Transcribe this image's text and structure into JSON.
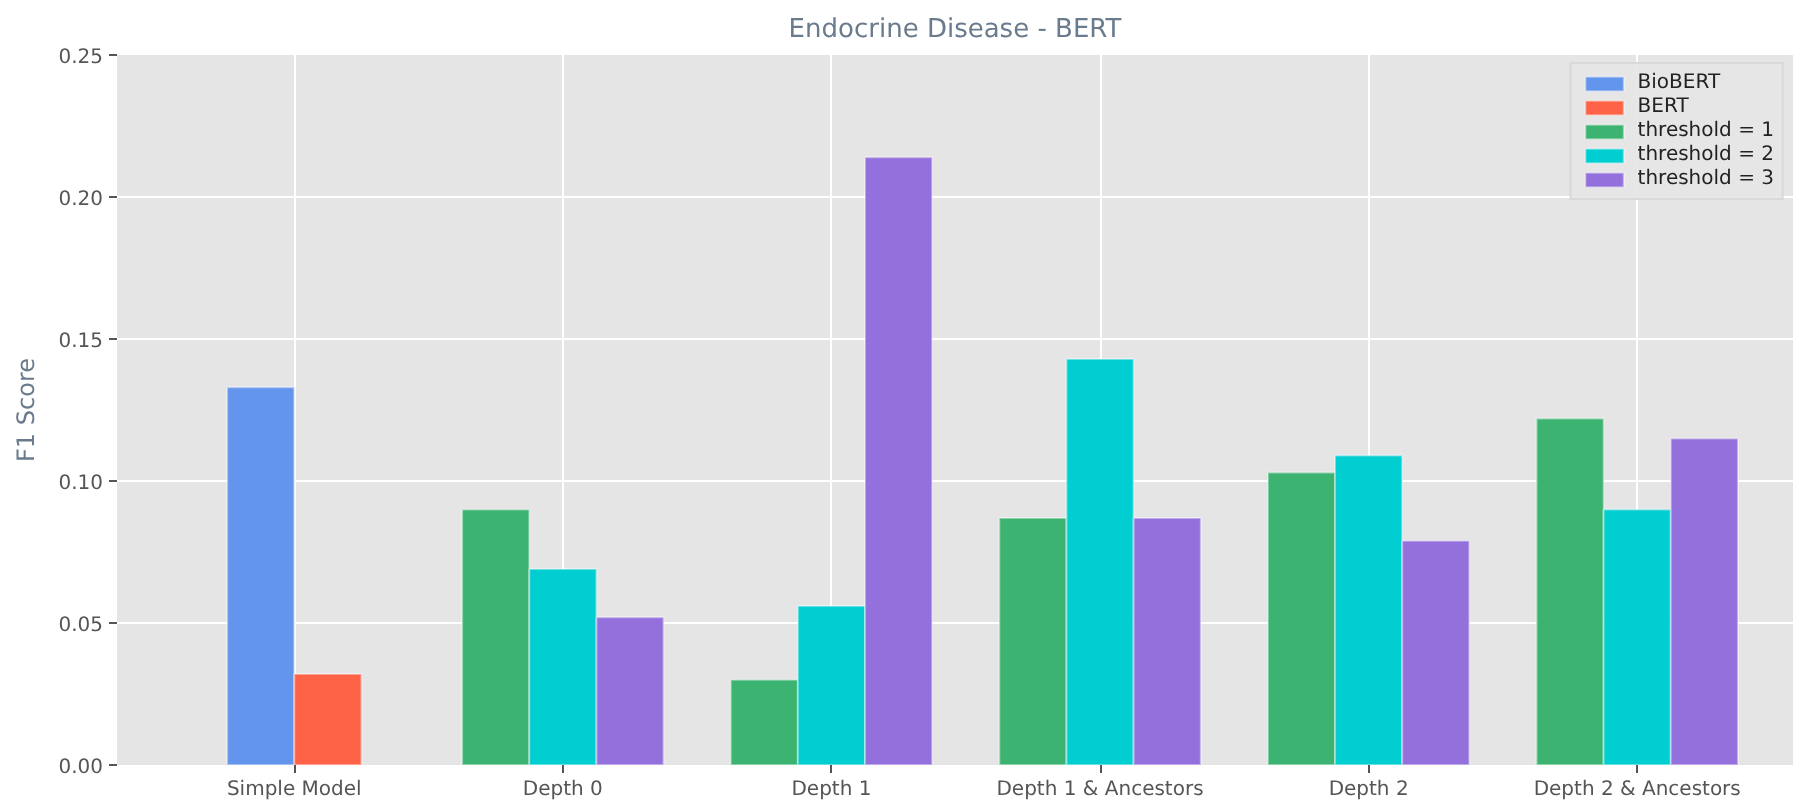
{
  "chart_data": {
    "type": "bar",
    "title": "Endocrine Disease - BERT",
    "ylabel": "F1 Score",
    "categories": [
      "Simple Model",
      "Depth 0",
      "Depth 1",
      "Depth 1 & Ancestors",
      "Depth 2",
      "Depth 2 & Ancestors"
    ],
    "series": [
      {
        "name": "BioBERT",
        "color": "#6495ed",
        "values": [
          0.133,
          null,
          null,
          null,
          null,
          null
        ]
      },
      {
        "name": "BERT",
        "color": "#ff6347",
        "values": [
          0.032,
          null,
          null,
          null,
          null,
          null
        ]
      },
      {
        "name": "threshold = 1",
        "color": "#3cb371",
        "values": [
          null,
          0.09,
          0.03,
          0.087,
          0.103,
          0.122
        ]
      },
      {
        "name": "threshold = 2",
        "color": "#00ced1",
        "values": [
          null,
          0.069,
          0.056,
          0.143,
          0.109,
          0.09
        ]
      },
      {
        "name": "threshold = 3",
        "color": "#9370db",
        "values": [
          null,
          0.052,
          0.214,
          0.087,
          0.079,
          0.115
        ]
      }
    ],
    "ylim": [
      0,
      0.25
    ],
    "yticks": [
      {
        "value": 0,
        "label": "0.00"
      },
      {
        "value": 0.05,
        "label": "0.05"
      },
      {
        "value": 0.1,
        "label": "0.10"
      },
      {
        "value": 0.15,
        "label": "0.15"
      },
      {
        "value": 0.2,
        "label": "0.20"
      },
      {
        "value": 0.25,
        "label": "0.25"
      }
    ],
    "grid": true,
    "legend": "top right"
  }
}
